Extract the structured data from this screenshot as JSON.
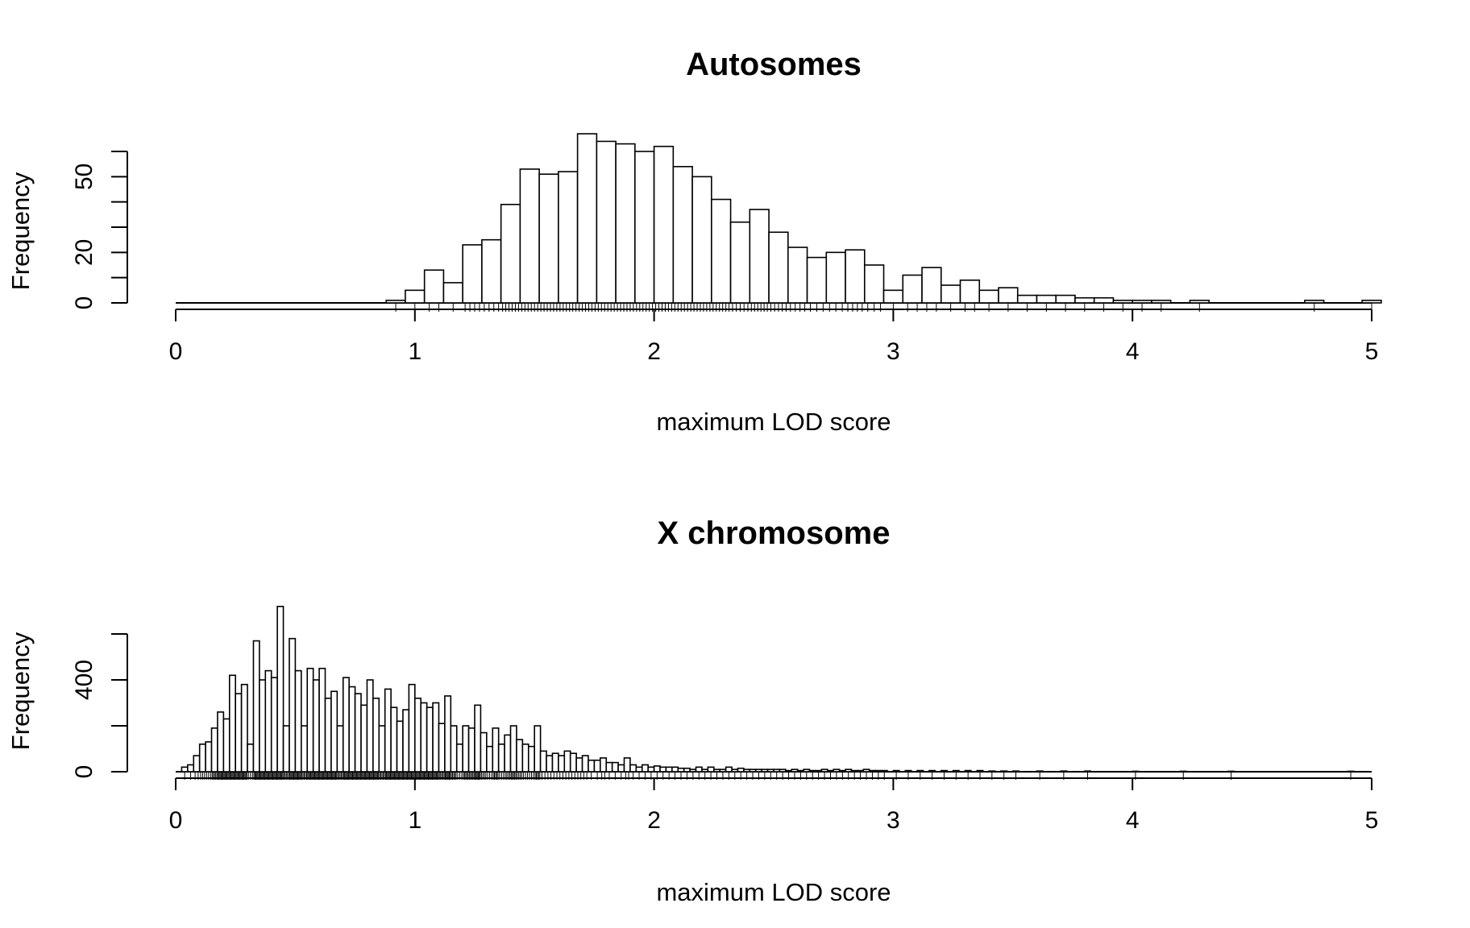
{
  "chart_data": [
    {
      "type": "bar",
      "title": "Autosomes",
      "xlabel": "maximum LOD score",
      "ylabel": "Frequency",
      "xlim": [
        0,
        5
      ],
      "ylim": [
        0,
        60
      ],
      "xticks": [
        0,
        1,
        2,
        3,
        4,
        5
      ],
      "yticks": [
        0,
        10,
        20,
        30,
        40,
        50,
        60
      ],
      "ytick_labels": [
        "0",
        "",
        "20",
        "",
        "",
        "50",
        ""
      ],
      "bin_width": 0.08,
      "bins": [
        [
          0.88,
          1
        ],
        [
          0.96,
          5
        ],
        [
          1.04,
          13
        ],
        [
          1.12,
          8
        ],
        [
          1.2,
          23
        ],
        [
          1.28,
          25
        ],
        [
          1.36,
          39
        ],
        [
          1.44,
          53
        ],
        [
          1.52,
          51
        ],
        [
          1.6,
          52
        ],
        [
          1.68,
          67
        ],
        [
          1.76,
          64
        ],
        [
          1.84,
          63
        ],
        [
          1.92,
          60
        ],
        [
          2.0,
          62
        ],
        [
          2.08,
          54
        ],
        [
          2.16,
          50
        ],
        [
          2.24,
          41
        ],
        [
          2.32,
          32
        ],
        [
          2.4,
          37
        ],
        [
          2.48,
          28
        ],
        [
          2.56,
          22
        ],
        [
          2.64,
          18
        ],
        [
          2.72,
          20
        ],
        [
          2.8,
          21
        ],
        [
          2.88,
          15
        ],
        [
          2.96,
          5
        ],
        [
          3.04,
          11
        ],
        [
          3.12,
          14
        ],
        [
          3.2,
          7
        ],
        [
          3.28,
          9
        ],
        [
          3.36,
          5
        ],
        [
          3.44,
          6
        ],
        [
          3.52,
          3
        ],
        [
          3.6,
          3
        ],
        [
          3.68,
          3
        ],
        [
          3.76,
          2
        ],
        [
          3.84,
          2
        ],
        [
          3.92,
          1
        ],
        [
          4.0,
          1
        ],
        [
          4.08,
          1
        ],
        [
          4.24,
          1
        ],
        [
          4.72,
          1
        ],
        [
          4.96,
          1
        ]
      ],
      "grid": false,
      "legend": "none"
    },
    {
      "type": "bar",
      "title": "X chromosome",
      "xlabel": "maximum LOD score",
      "ylabel": "Frequency",
      "xlim": [
        0,
        5
      ],
      "ylim": [
        0,
        600
      ],
      "xticks": [
        0,
        1,
        2,
        3,
        4,
        5
      ],
      "yticks": [
        0,
        200,
        400,
        600
      ],
      "ytick_labels": [
        "0",
        "",
        "400",
        ""
      ],
      "bin_width": 0.025,
      "bins": [
        [
          0.025,
          20
        ],
        [
          0.05,
          30
        ],
        [
          0.075,
          70
        ],
        [
          0.1,
          120
        ],
        [
          0.125,
          130
        ],
        [
          0.15,
          190
        ],
        [
          0.175,
          260
        ],
        [
          0.2,
          230
        ],
        [
          0.225,
          420
        ],
        [
          0.25,
          340
        ],
        [
          0.275,
          380
        ],
        [
          0.3,
          120
        ],
        [
          0.325,
          570
        ],
        [
          0.35,
          400
        ],
        [
          0.375,
          440
        ],
        [
          0.4,
          410
        ],
        [
          0.425,
          720
        ],
        [
          0.45,
          200
        ],
        [
          0.475,
          580
        ],
        [
          0.5,
          440
        ],
        [
          0.525,
          200
        ],
        [
          0.55,
          450
        ],
        [
          0.575,
          400
        ],
        [
          0.6,
          450
        ],
        [
          0.625,
          320
        ],
        [
          0.65,
          350
        ],
        [
          0.675,
          200
        ],
        [
          0.7,
          410
        ],
        [
          0.725,
          370
        ],
        [
          0.75,
          340
        ],
        [
          0.775,
          290
        ],
        [
          0.8,
          400
        ],
        [
          0.825,
          320
        ],
        [
          0.85,
          200
        ],
        [
          0.875,
          360
        ],
        [
          0.9,
          280
        ],
        [
          0.925,
          220
        ],
        [
          0.95,
          270
        ],
        [
          0.975,
          380
        ],
        [
          1.0,
          320
        ],
        [
          1.025,
          300
        ],
        [
          1.05,
          280
        ],
        [
          1.075,
          300
        ],
        [
          1.1,
          210
        ],
        [
          1.125,
          330
        ],
        [
          1.15,
          200
        ],
        [
          1.175,
          120
        ],
        [
          1.2,
          200
        ],
        [
          1.225,
          190
        ],
        [
          1.25,
          290
        ],
        [
          1.275,
          170
        ],
        [
          1.3,
          110
        ],
        [
          1.325,
          190
        ],
        [
          1.35,
          120
        ],
        [
          1.375,
          160
        ],
        [
          1.4,
          200
        ],
        [
          1.425,
          140
        ],
        [
          1.45,
          120
        ],
        [
          1.475,
          110
        ],
        [
          1.5,
          200
        ],
        [
          1.525,
          90
        ],
        [
          1.55,
          70
        ],
        [
          1.575,
          80
        ],
        [
          1.6,
          70
        ],
        [
          1.625,
          90
        ],
        [
          1.65,
          80
        ],
        [
          1.675,
          60
        ],
        [
          1.7,
          70
        ],
        [
          1.725,
          50
        ],
        [
          1.75,
          50
        ],
        [
          1.775,
          60
        ],
        [
          1.8,
          40
        ],
        [
          1.825,
          40
        ],
        [
          1.85,
          30
        ],
        [
          1.875,
          60
        ],
        [
          1.9,
          30
        ],
        [
          1.925,
          20
        ],
        [
          1.95,
          30
        ],
        [
          1.975,
          20
        ],
        [
          2.0,
          25
        ],
        [
          2.025,
          20
        ],
        [
          2.05,
          20
        ],
        [
          2.075,
          20
        ],
        [
          2.1,
          15
        ],
        [
          2.125,
          15
        ],
        [
          2.15,
          10
        ],
        [
          2.175,
          20
        ],
        [
          2.2,
          10
        ],
        [
          2.225,
          20
        ],
        [
          2.25,
          10
        ],
        [
          2.275,
          10
        ],
        [
          2.3,
          20
        ],
        [
          2.325,
          10
        ],
        [
          2.35,
          15
        ],
        [
          2.375,
          10
        ],
        [
          2.4,
          10
        ],
        [
          2.425,
          10
        ],
        [
          2.45,
          10
        ],
        [
          2.475,
          10
        ],
        [
          2.5,
          10
        ],
        [
          2.525,
          10
        ],
        [
          2.55,
          5
        ],
        [
          2.575,
          10
        ],
        [
          2.6,
          5
        ],
        [
          2.625,
          10
        ],
        [
          2.65,
          5
        ],
        [
          2.675,
          5
        ],
        [
          2.7,
          10
        ],
        [
          2.725,
          5
        ],
        [
          2.75,
          10
        ],
        [
          2.775,
          5
        ],
        [
          2.8,
          10
        ],
        [
          2.825,
          5
        ],
        [
          2.85,
          5
        ],
        [
          2.875,
          10
        ],
        [
          2.9,
          5
        ],
        [
          2.925,
          5
        ],
        [
          2.95,
          5
        ],
        [
          3.0,
          5
        ],
        [
          3.05,
          5
        ],
        [
          3.1,
          5
        ],
        [
          3.15,
          5
        ],
        [
          3.2,
          5
        ],
        [
          3.25,
          5
        ],
        [
          3.3,
          5
        ],
        [
          3.35,
          5
        ],
        [
          3.4,
          3
        ],
        [
          3.45,
          3
        ],
        [
          3.5,
          3
        ],
        [
          3.6,
          3
        ],
        [
          3.7,
          3
        ],
        [
          3.8,
          3
        ],
        [
          4.0,
          2
        ],
        [
          4.2,
          2
        ],
        [
          4.4,
          2
        ],
        [
          4.9,
          2
        ]
      ],
      "grid": false,
      "legend": "none"
    }
  ]
}
